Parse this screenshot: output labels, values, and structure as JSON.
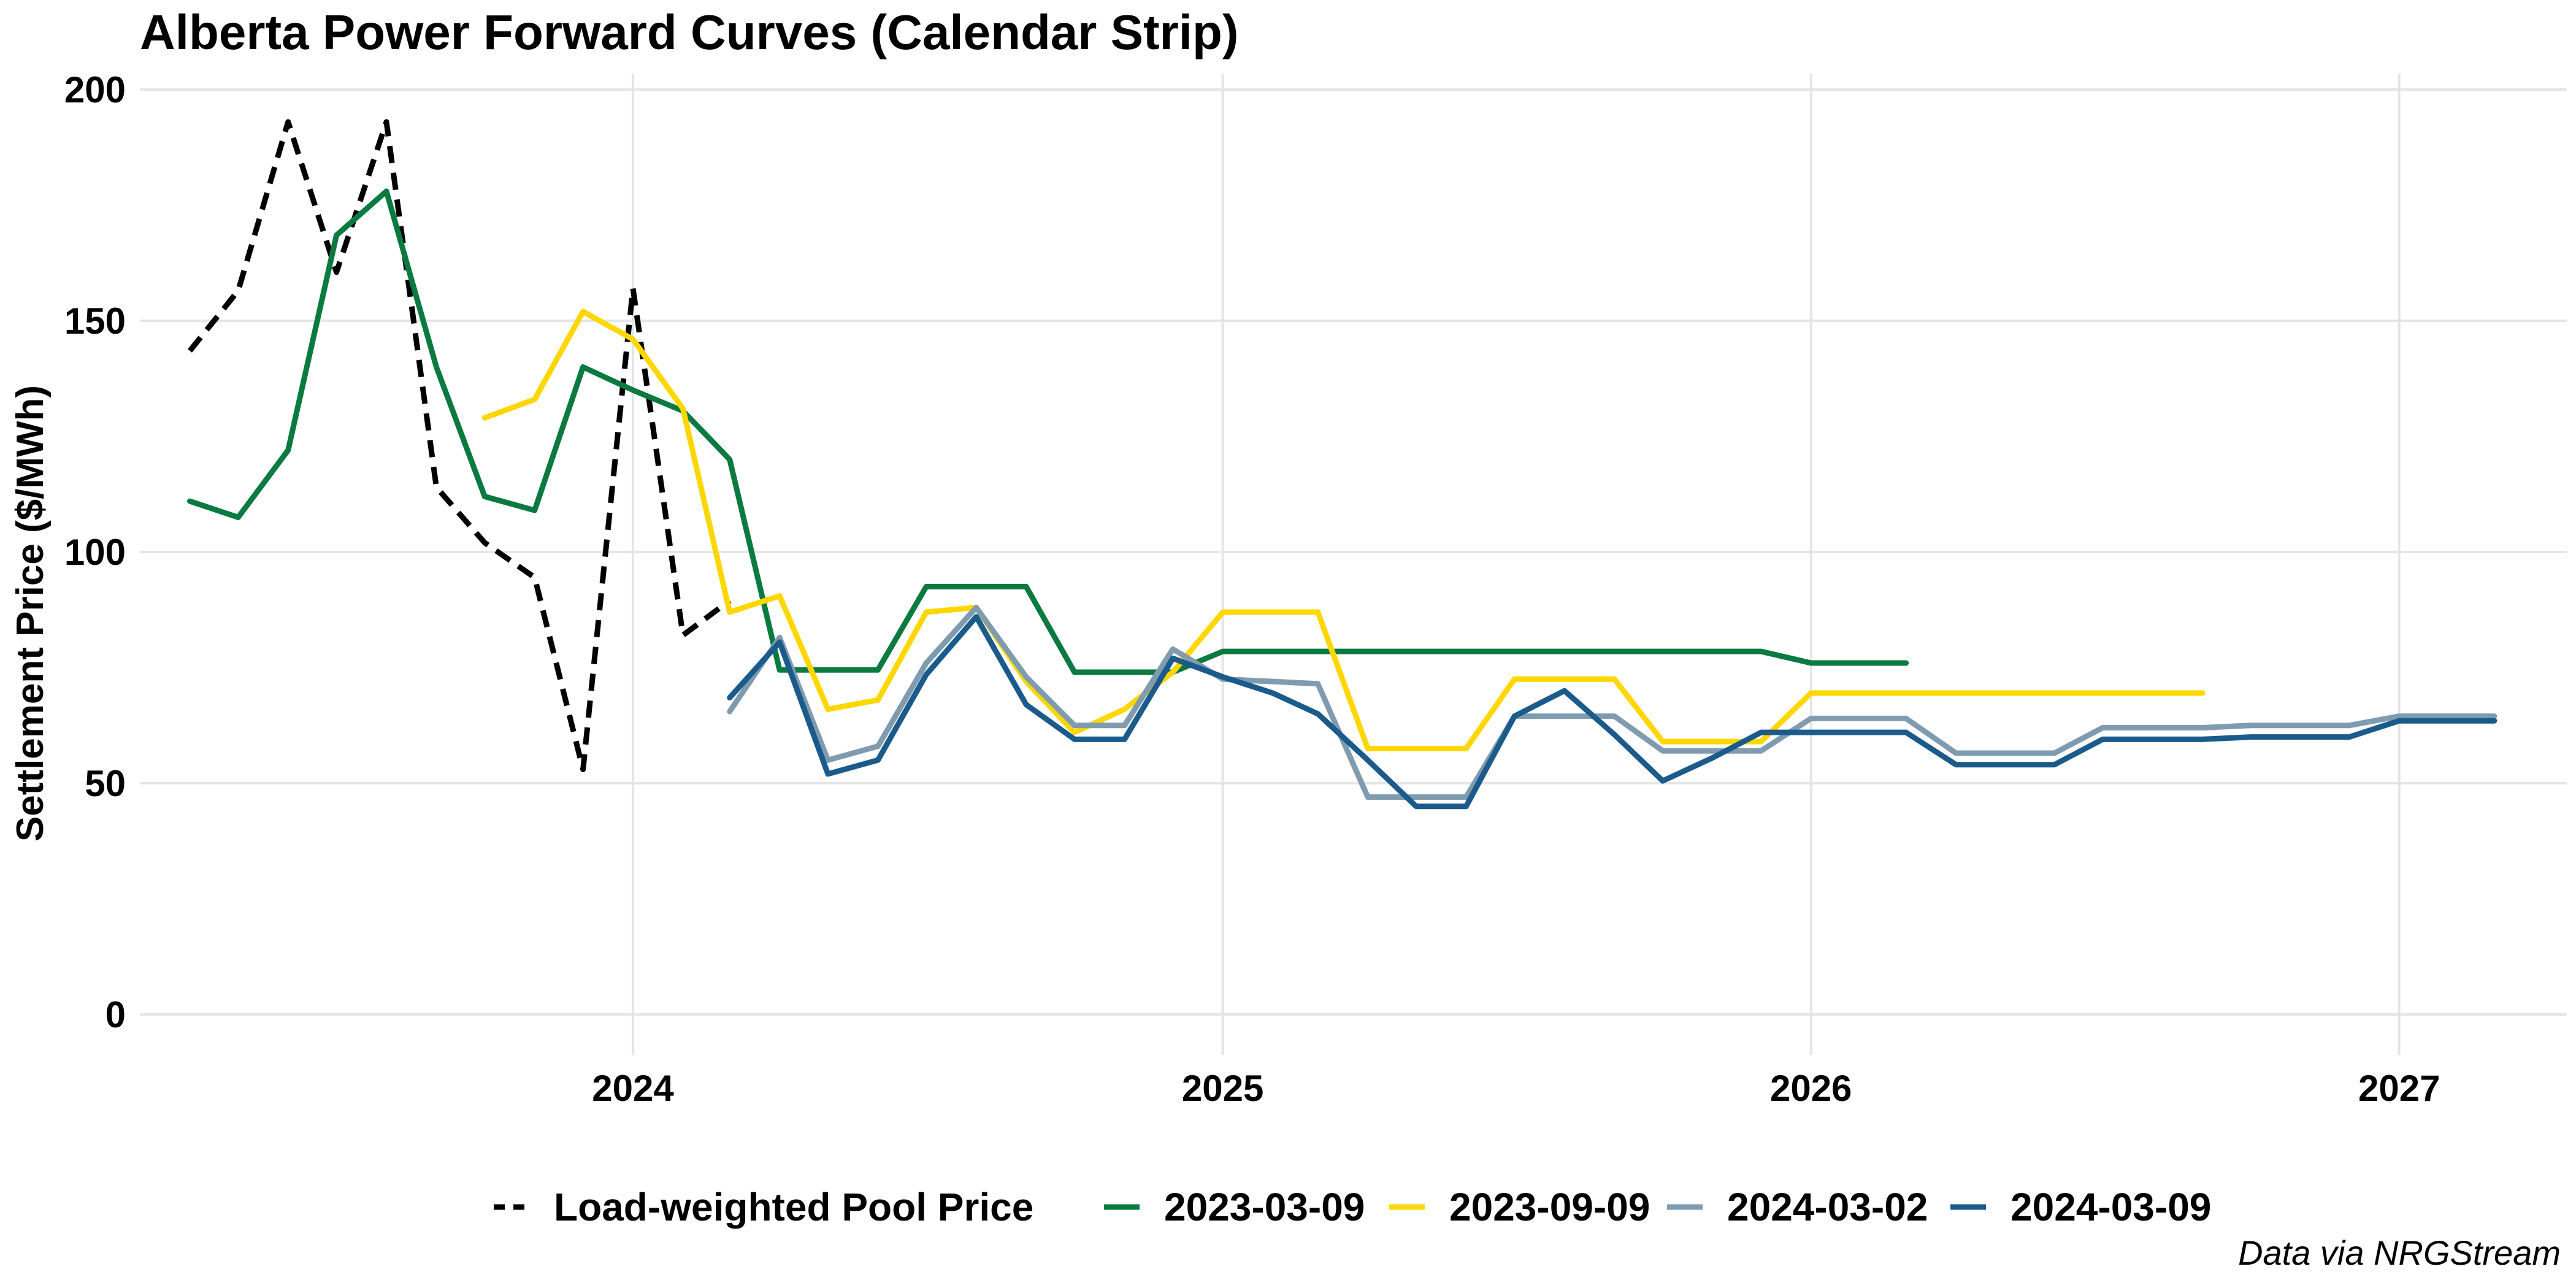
{
  "chart_data": {
    "type": "line",
    "title": "Alberta Power Forward Curves (Calendar Strip)",
    "ylabel": "Settlement Price ($/MWh)",
    "xlabel": "",
    "caption": "Data via NRGStream",
    "ylim": [
      0,
      200
    ],
    "xlim": [
      "2023-03-01",
      "2027-04-15"
    ],
    "y_ticks": [
      "0",
      "50",
      "100",
      "150",
      "200"
    ],
    "x_ticks": [
      {
        "label": "2024",
        "date": "2024-01-01"
      },
      {
        "label": "2025",
        "date": "2025-01-01"
      },
      {
        "label": "2026",
        "date": "2026-01-01"
      },
      {
        "label": "2027",
        "date": "2027-01-01"
      }
    ],
    "grid": true,
    "legend_position": "bottom",
    "series": [
      {
        "name": "Load-weighted Pool Price",
        "color": "#000000",
        "dash": true,
        "points": [
          [
            "2023-04-01",
            143.5
          ],
          [
            "2023-05-01",
            156.5
          ],
          [
            "2023-06-01",
            193
          ],
          [
            "2023-07-01",
            160.5
          ],
          [
            "2023-08-01",
            193
          ],
          [
            "2023-09-01",
            114
          ],
          [
            "2023-10-01",
            102
          ],
          [
            "2023-11-01",
            94.5
          ],
          [
            "2023-12-01",
            53
          ],
          [
            "2024-01-01",
            157
          ],
          [
            "2024-02-01",
            82
          ],
          [
            "2024-03-01",
            89.5
          ]
        ]
      },
      {
        "name": "2023-03-09",
        "color": "#0a7a40",
        "dash": false,
        "points": [
          [
            "2023-04-01",
            111
          ],
          [
            "2023-05-01",
            107.5
          ],
          [
            "2023-06-01",
            122
          ],
          [
            "2023-07-01",
            168.5
          ],
          [
            "2023-08-01",
            178
          ],
          [
            "2023-09-01",
            140
          ],
          [
            "2023-10-01",
            112
          ],
          [
            "2023-11-01",
            109
          ],
          [
            "2023-12-01",
            140
          ],
          [
            "2024-01-01",
            135
          ],
          [
            "2024-02-01",
            130.5
          ],
          [
            "2024-03-01",
            120
          ],
          [
            "2024-04-01",
            74.5
          ],
          [
            "2024-05-01",
            74.5
          ],
          [
            "2024-06-01",
            74.5
          ],
          [
            "2024-07-01",
            92.5
          ],
          [
            "2024-08-01",
            92.5
          ],
          [
            "2024-09-01",
            92.5
          ],
          [
            "2024-10-01",
            74
          ],
          [
            "2024-11-01",
            74
          ],
          [
            "2024-12-01",
            74
          ],
          [
            "2025-01-01",
            78.5
          ],
          [
            "2025-02-01",
            78.5
          ],
          [
            "2025-03-01",
            78.5
          ],
          [
            "2025-04-01",
            78.5
          ],
          [
            "2025-05-01",
            78.5
          ],
          [
            "2025-06-01",
            78.5
          ],
          [
            "2025-07-01",
            78.5
          ],
          [
            "2025-08-01",
            78.5
          ],
          [
            "2025-09-01",
            78.5
          ],
          [
            "2025-10-01",
            78.5
          ],
          [
            "2025-11-01",
            78.5
          ],
          [
            "2025-12-01",
            78.5
          ],
          [
            "2026-01-01",
            76
          ],
          [
            "2026-02-01",
            76
          ],
          [
            "2026-03-01",
            76
          ]
        ]
      },
      {
        "name": "2023-09-09",
        "color": "#ffd700",
        "dash": false,
        "points": [
          [
            "2023-10-01",
            129
          ],
          [
            "2023-11-01",
            133
          ],
          [
            "2023-12-01",
            152
          ],
          [
            "2024-01-01",
            146
          ],
          [
            "2024-02-01",
            131
          ],
          [
            "2024-03-01",
            87
          ],
          [
            "2024-04-01",
            90.5
          ],
          [
            "2024-05-01",
            66
          ],
          [
            "2024-06-01",
            68
          ],
          [
            "2024-07-01",
            87
          ],
          [
            "2024-08-01",
            88
          ],
          [
            "2024-09-01",
            72
          ],
          [
            "2024-10-01",
            61
          ],
          [
            "2024-11-01",
            66
          ],
          [
            "2024-12-01",
            74
          ],
          [
            "2025-01-01",
            87
          ],
          [
            "2025-02-01",
            87
          ],
          [
            "2025-03-01",
            87
          ],
          [
            "2025-04-01",
            57.5
          ],
          [
            "2025-05-01",
            57.5
          ],
          [
            "2025-06-01",
            57.5
          ],
          [
            "2025-07-01",
            72.5
          ],
          [
            "2025-08-01",
            72.5
          ],
          [
            "2025-09-01",
            72.5
          ],
          [
            "2025-10-01",
            59
          ],
          [
            "2025-11-01",
            59
          ],
          [
            "2025-12-01",
            59
          ],
          [
            "2026-01-01",
            69.5
          ],
          [
            "2026-02-01",
            69.5
          ],
          [
            "2026-03-01",
            69.5
          ],
          [
            "2026-04-01",
            69.5
          ],
          [
            "2026-05-01",
            69.5
          ],
          [
            "2026-06-01",
            69.5
          ],
          [
            "2026-07-01",
            69.5
          ],
          [
            "2026-08-01",
            69.5
          ],
          [
            "2026-09-01",
            69.5
          ]
        ]
      },
      {
        "name": "2024-03-02",
        "color": "#7f9bb0",
        "dash": false,
        "points": [
          [
            "2024-03-01",
            65.5
          ],
          [
            "2024-04-01",
            81.5
          ],
          [
            "2024-05-01",
            55
          ],
          [
            "2024-06-01",
            58
          ],
          [
            "2024-07-01",
            76
          ],
          [
            "2024-08-01",
            88
          ],
          [
            "2024-09-01",
            73
          ],
          [
            "2024-10-01",
            62.5
          ],
          [
            "2024-11-01",
            62.5
          ],
          [
            "2024-12-01",
            79
          ],
          [
            "2025-01-01",
            72.5
          ],
          [
            "2025-02-01",
            72
          ],
          [
            "2025-03-01",
            71.5
          ],
          [
            "2025-04-01",
            47
          ],
          [
            "2025-05-01",
            47
          ],
          [
            "2025-06-01",
            47
          ],
          [
            "2025-07-01",
            64.5
          ],
          [
            "2025-08-01",
            64.5
          ],
          [
            "2025-09-01",
            64.5
          ],
          [
            "2025-10-01",
            57
          ],
          [
            "2025-11-01",
            57
          ],
          [
            "2025-12-01",
            57
          ],
          [
            "2026-01-01",
            64
          ],
          [
            "2026-02-01",
            64
          ],
          [
            "2026-03-01",
            64
          ],
          [
            "2026-04-01",
            56.5
          ],
          [
            "2026-05-01",
            56.5
          ],
          [
            "2026-06-01",
            56.5
          ],
          [
            "2026-07-01",
            62
          ],
          [
            "2026-08-01",
            62
          ],
          [
            "2026-09-01",
            62
          ],
          [
            "2026-10-01",
            62.5
          ],
          [
            "2026-11-01",
            62.5
          ],
          [
            "2026-12-01",
            62.5
          ],
          [
            "2027-01-01",
            64.5
          ],
          [
            "2027-02-01",
            64.5
          ],
          [
            "2027-03-01",
            64.5
          ]
        ]
      },
      {
        "name": "2024-03-09",
        "color": "#1a5b8c",
        "dash": false,
        "points": [
          [
            "2024-03-01",
            68.5
          ],
          [
            "2024-04-01",
            80.5
          ],
          [
            "2024-05-01",
            52
          ],
          [
            "2024-06-01",
            55
          ],
          [
            "2024-07-01",
            73.5
          ],
          [
            "2024-08-01",
            86
          ],
          [
            "2024-09-01",
            67
          ],
          [
            "2024-10-01",
            59.5
          ],
          [
            "2024-11-01",
            59.5
          ],
          [
            "2024-12-01",
            77
          ],
          [
            "2025-01-01",
            73
          ],
          [
            "2025-02-01",
            69.5
          ],
          [
            "2025-03-01",
            65
          ],
          [
            "2025-04-01",
            55
          ],
          [
            "2025-05-01",
            45
          ],
          [
            "2025-06-01",
            45
          ],
          [
            "2025-07-01",
            64.5
          ],
          [
            "2025-08-01",
            70
          ],
          [
            "2025-09-01",
            60.5
          ],
          [
            "2025-10-01",
            50.5
          ],
          [
            "2025-11-01",
            55.5
          ],
          [
            "2025-12-01",
            61
          ],
          [
            "2026-01-01",
            61
          ],
          [
            "2026-02-01",
            61
          ],
          [
            "2026-03-01",
            61
          ],
          [
            "2026-04-01",
            54
          ],
          [
            "2026-05-01",
            54
          ],
          [
            "2026-06-01",
            54
          ],
          [
            "2026-07-01",
            59.5
          ],
          [
            "2026-08-01",
            59.5
          ],
          [
            "2026-09-01",
            59.5
          ],
          [
            "2026-10-01",
            60
          ],
          [
            "2026-11-01",
            60
          ],
          [
            "2026-12-01",
            60
          ],
          [
            "2027-01-01",
            63.5
          ],
          [
            "2027-02-01",
            63.5
          ],
          [
            "2027-03-01",
            63.5
          ]
        ]
      }
    ]
  }
}
